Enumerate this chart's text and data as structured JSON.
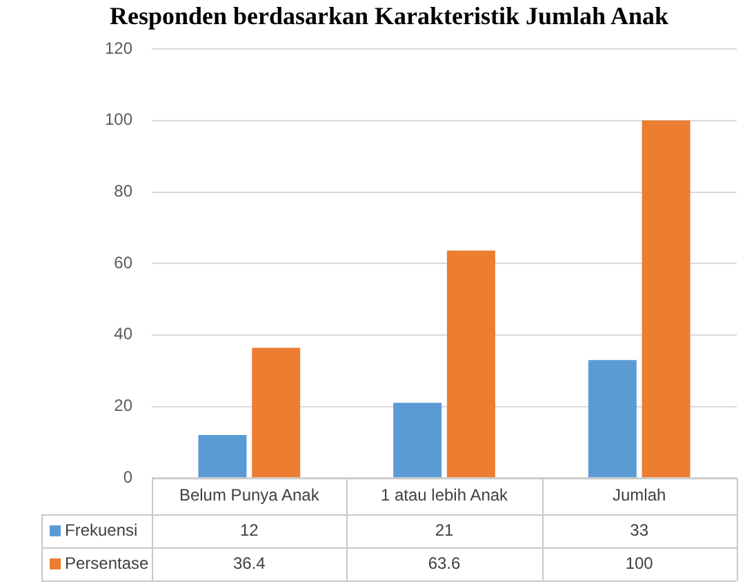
{
  "chart_data": {
    "type": "bar",
    "title": "Responden berdasarkan Karakteristik Jumlah Anak",
    "categories": [
      "Belum Punya Anak",
      "1 atau lebih Anak",
      "Jumlah"
    ],
    "series": [
      {
        "name": "Frekuensi",
        "color": "#5b9bd5",
        "values": [
          12,
          21,
          33
        ]
      },
      {
        "name": "Persentase",
        "color": "#ed7d31",
        "values": [
          36.4,
          63.6,
          100
        ]
      }
    ],
    "ylim": [
      0,
      120
    ],
    "yticks": [
      0,
      20,
      40,
      60,
      80,
      100,
      120
    ],
    "grid": "y",
    "legend": "bottom",
    "data_labels": true
  }
}
